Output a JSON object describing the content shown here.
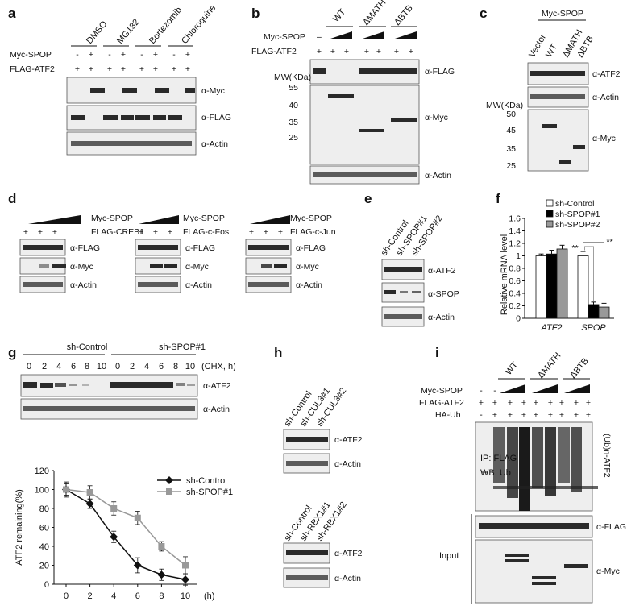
{
  "panels": {
    "a": {
      "label": "a",
      "treatments": [
        "DMSO",
        "MG132",
        "Bortezomib",
        "Chloroquine"
      ],
      "rows": [
        {
          "name": "Myc-SPOP",
          "signs": [
            "-",
            "+",
            "-",
            "+",
            "-",
            "+",
            "-",
            "+"
          ]
        },
        {
          "name": "FLAG-ATF2",
          "signs": [
            "+",
            "+",
            "+",
            "+",
            "+",
            "+",
            "+",
            "+"
          ]
        }
      ],
      "blots": [
        "α-Myc",
        "α-FLAG",
        "α-Actin"
      ]
    },
    "b": {
      "label": "b",
      "groups": [
        "WT",
        "ΔMATH",
        "ΔBTB"
      ],
      "rows": [
        {
          "name": "Myc-SPOP",
          "signs": [
            "–"
          ]
        },
        {
          "name": "FLAG-ATF2",
          "signs": [
            "+",
            "+",
            "+",
            "+",
            "+",
            "+",
            "+"
          ]
        }
      ],
      "mw_title": "MW(KDa)",
      "mw": [
        "55",
        "40",
        "35",
        "25"
      ],
      "blots": [
        "α-FLAG",
        "α-Myc",
        "α-Actin"
      ]
    },
    "c": {
      "label": "c",
      "header": "Myc-SPOP",
      "lanes": [
        "Vector",
        "WT",
        "ΔMATH",
        "ΔBTB"
      ],
      "mw_title": "MW(KDa)",
      "mw": [
        "50",
        "45",
        "35",
        "25"
      ],
      "blots": [
        "α-ATF2",
        "α-Actin",
        "α-Myc"
      ]
    },
    "d": {
      "label": "d",
      "subpanels": [
        {
          "top": "Myc-SPOP",
          "target": "FLAG-CREB1",
          "blots": [
            "α-FLAG",
            "α-Myc",
            "α-Actin"
          ]
        },
        {
          "top": "Myc-SPOP",
          "target": "FLAG-c-Fos",
          "blots": [
            "α-FLAG",
            "α-Myc",
            "α-Actin"
          ]
        },
        {
          "top": "Myc-SPOP",
          "target": "FLAG-c-Jun",
          "blots": [
            "α-FLAG",
            "α-Myc",
            "α-Actin"
          ]
        }
      ],
      "plus": "+"
    },
    "e": {
      "label": "e",
      "lanes": [
        "sh-Control",
        "sh-SPOP#1",
        "sh-SPOP#2"
      ],
      "blots": [
        "α-ATF2",
        "α-SPOP",
        "α-Actin"
      ]
    },
    "g": {
      "label": "g",
      "groups": [
        "sh-Control",
        "sh-SPOP#1"
      ],
      "timepoints": [
        "0",
        "2",
        "4",
        "6",
        "8",
        "10",
        "0",
        "2",
        "4",
        "6",
        "8",
        "10"
      ],
      "unit": "(CHX, h)",
      "blots": [
        "α-ATF2",
        "α-Actin"
      ]
    },
    "h": {
      "label": "h",
      "top_lanes": [
        "sh-Control",
        "sh-CUL3#1",
        "sh-CUL3#2"
      ],
      "bottom_lanes": [
        "sh-Control",
        "sh-RBX1#1",
        "sh-RBX1#2"
      ],
      "blots": [
        "α-ATF2",
        "α-Actin",
        "α-ATF2",
        "α-Actin"
      ]
    },
    "i": {
      "label": "i",
      "groups": [
        "WT",
        "ΔMATH",
        "ΔBTB"
      ],
      "rows": [
        {
          "name": "Myc-SPOP",
          "signs": [
            "-",
            "-"
          ]
        },
        {
          "name": "FLAG-ATF2",
          "signs": [
            "+",
            "+",
            "+",
            "+",
            "+",
            "+",
            "+",
            "+",
            "+"
          ]
        },
        {
          "name": "HA-Ub",
          "signs": [
            "-",
            "+",
            "+",
            "+",
            "+",
            "+",
            "+",
            "+",
            "+"
          ]
        }
      ],
      "ip": "IP: FLAG",
      "wb": "WB: Ub",
      "ub_label": "(Ub)n-ATF2",
      "input": "Input",
      "blots": [
        "α-FLAG",
        "α-Myc"
      ]
    }
  },
  "chart_data": [
    {
      "panel": "f",
      "type": "bar",
      "categories": [
        "ATF2",
        "SPOP"
      ],
      "series": [
        {
          "name": "sh-Control",
          "values": [
            1.0,
            1.0
          ],
          "errors": [
            0.03,
            0.07
          ],
          "color": "#ffffff"
        },
        {
          "name": "sh-SPOP#1",
          "values": [
            1.03,
            0.22
          ],
          "errors": [
            0.06,
            0.04
          ],
          "color": "#000000"
        },
        {
          "name": "sh-SPOP#2",
          "values": [
            1.11,
            0.18
          ],
          "errors": [
            0.06,
            0.06
          ],
          "color": "#999999"
        }
      ],
      "ylabel": "Relative mRNA level",
      "ylim": [
        0,
        1.6
      ],
      "yticks": [
        "0",
        "0.2",
        "0.4",
        "0.6",
        "0.8",
        "1",
        "1.2",
        "1.4",
        "1.6"
      ],
      "significance": [
        "**",
        "**"
      ],
      "legend": "top-left"
    },
    {
      "panel": "g",
      "type": "line",
      "x": [
        0,
        2,
        4,
        6,
        8,
        10
      ],
      "series": [
        {
          "name": "sh-Control",
          "values": [
            100,
            85,
            50,
            20,
            10,
            5
          ],
          "errors": [
            8,
            5,
            6,
            8,
            6,
            6
          ],
          "color": "#111111",
          "marker": "diamond"
        },
        {
          "name": "sh-SPOP#1",
          "values": [
            100,
            97,
            80,
            70,
            40,
            20
          ],
          "errors": [
            6,
            7,
            7,
            7,
            5,
            9
          ],
          "color": "#999999",
          "marker": "square"
        }
      ],
      "xlabel": "(h)",
      "ylabel": "ATF2 remaining(%)",
      "xlim": [
        0,
        10
      ],
      "ylim": [
        0,
        120
      ],
      "xticks": [
        "0",
        "2",
        "4",
        "6",
        "8",
        "10"
      ],
      "yticks": [
        "0",
        "20",
        "40",
        "60",
        "80",
        "100",
        "120"
      ],
      "legend": "top-right"
    }
  ]
}
